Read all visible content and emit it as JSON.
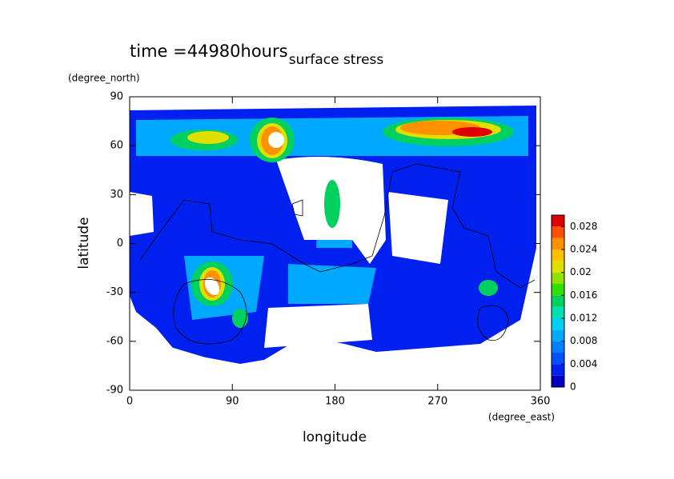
{
  "chart_data": {
    "type": "contour",
    "title": "surface stress",
    "annotation": "time =44980hours",
    "x_label": "longitude",
    "x_unit": "(degree_east)",
    "y_label": "latitude",
    "y_unit": "(degree_north)",
    "xlim": [
      0,
      360
    ],
    "ylim": [
      -90,
      90
    ],
    "xticks": [
      0,
      90,
      180,
      270,
      360
    ],
    "yticks": [
      -90,
      -60,
      -30,
      0,
      30,
      60,
      90
    ],
    "colorbar": {
      "lim": [
        0,
        0.03
      ],
      "levels": [
        0,
        0.002,
        0.004,
        0.006,
        0.008,
        0.01,
        0.012,
        0.014,
        0.016,
        0.018,
        0.02,
        0.022,
        0.024,
        0.026,
        0.028,
        0.03
      ],
      "colors": [
        "#0000c0",
        "#0020f0",
        "#0050ff",
        "#0080ff",
        "#00a8ff",
        "#00d0f0",
        "#00e0b0",
        "#00d060",
        "#30e000",
        "#90e000",
        "#e0e000",
        "#ffc000",
        "#ff9000",
        "#ff5000",
        "#e00000"
      ],
      "ticks": [
        0,
        0.004,
        0.008,
        0.012,
        0.016,
        0.02,
        0.024,
        0.028
      ]
    }
  }
}
